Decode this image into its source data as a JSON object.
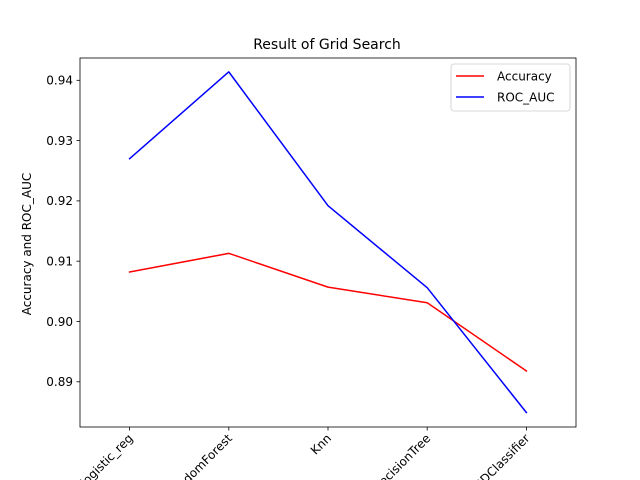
{
  "chart_data": {
    "type": "line",
    "title": "Result of Grid Search",
    "xlabel": "",
    "ylabel": "Accuracy and ROC_AUC",
    "categories": [
      "logistic_reg",
      "RandomForest",
      "Knn",
      "DecisionTree",
      "SGDClassifier"
    ],
    "series": [
      {
        "name": "Accuracy",
        "color": "#ff0000",
        "values": [
          0.9082,
          0.9113,
          0.9057,
          0.9031,
          0.8918
        ]
      },
      {
        "name": "ROC_AUC",
        "color": "#0000ff",
        "values": [
          0.927,
          0.9414,
          0.9192,
          0.9056,
          0.8849
        ]
      }
    ],
    "ylim": [
      0.8825,
      0.9437
    ],
    "yticks": [
      0.89,
      0.9,
      0.91,
      0.92,
      0.93,
      0.94
    ],
    "ytick_labels": [
      "0.89",
      "0.90",
      "0.91",
      "0.92",
      "0.93",
      "0.94"
    ],
    "grid": false,
    "legend_position": "top-right",
    "xtick_rotation": 45
  }
}
